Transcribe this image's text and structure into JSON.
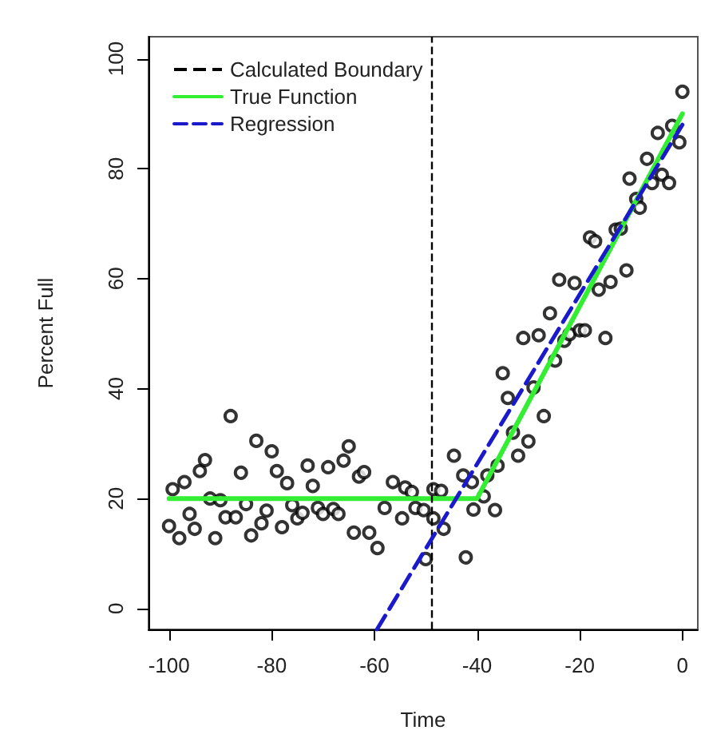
{
  "chart_data": {
    "type": "scatter",
    "xlabel": "Time",
    "ylabel": "Percent Full",
    "xlim": [
      -104,
      3
    ],
    "ylim": [
      -3.8,
      104
    ],
    "xticks": [
      -100,
      -80,
      -60,
      -40,
      -20,
      0
    ],
    "yticks": [
      0,
      20,
      40,
      60,
      80,
      100
    ],
    "grid": false,
    "legend": "top left",
    "ref_lines": [
      {
        "axis": "x",
        "value": -49,
        "label": "Calculated Boundary",
        "color": "#000000",
        "line_style": "dashed"
      }
    ],
    "series": [
      {
        "marker": "circle",
        "color": "#000000",
        "x": [
          -100,
          -99.3,
          -98,
          -97,
          -96,
          -95,
          -94,
          -93,
          -92,
          -91,
          -90,
          -89,
          -88,
          -87,
          -86,
          -85,
          -84,
          -83,
          -82,
          -81,
          -80,
          -79,
          -78,
          -77,
          -76,
          -75,
          -74,
          -73,
          -72,
          -71,
          -70,
          -69,
          -68,
          -67,
          -66,
          -65,
          -64,
          -63,
          -62,
          -61,
          -59.4,
          -58,
          -56.4,
          -54.6,
          -54,
          -52.7,
          -52,
          -50.4,
          -50,
          -48.5,
          -48.5,
          -47,
          -46.5,
          -44.5,
          -42.7,
          -42.2,
          -41,
          -40.7,
          -38.7,
          -38,
          -36.5,
          -36,
          -35,
          -34,
          -33,
          -32,
          -31,
          -30,
          -29,
          -28,
          -27,
          -25.8,
          -24.8,
          -24,
          -23,
          -22,
          -21,
          -20,
          -19,
          -18,
          -17,
          -16.3,
          -15,
          -14,
          -13,
          -12,
          -10.9,
          -10.3,
          -9,
          -8.3,
          -6.9,
          -5.9,
          -4.8,
          -4,
          -2.6,
          -2,
          -0.6,
          0
        ],
        "values": [
          15,
          21.7,
          12.8,
          23,
          17.2,
          14.5,
          25,
          27,
          20,
          12.8,
          19.7,
          16.6,
          35,
          16.6,
          24.7,
          19,
          13.3,
          30.5,
          15.5,
          17.8,
          28.6,
          25,
          14.8,
          22.8,
          18.8,
          16.4,
          17.4,
          26,
          22.3,
          18.3,
          17.2,
          25.7,
          18.1,
          17.2,
          26.9,
          29.5,
          13.8,
          24,
          24.8,
          13.8,
          11,
          18.3,
          23,
          16.4,
          22,
          21.2,
          18.3,
          17.9,
          9,
          21.7,
          16.4,
          21.4,
          14.5,
          27.8,
          24.2,
          9.3,
          23,
          18,
          20.4,
          24.2,
          17.9,
          26,
          42.8,
          38.3,
          32,
          27.8,
          49.2,
          30.4,
          40.2,
          49.7,
          35,
          53.7,
          45.1,
          59.8,
          48.7,
          49.9,
          59.2,
          50.6,
          50.6,
          67.5,
          66.8,
          58,
          49.2,
          59.4,
          68.9,
          69.1,
          61.5,
          78.2,
          74.5,
          72.9,
          81.8,
          77.4,
          86.5,
          78.9,
          77.4,
          87.8,
          84.8,
          94
        ]
      },
      {
        "type": "line",
        "name": "True Function",
        "color": "#33ee33",
        "line_style": "solid",
        "x": [
          -100,
          -40,
          0
        ],
        "values": [
          20,
          20,
          90
        ]
      },
      {
        "type": "line",
        "name": "Regression",
        "color": "#1a1acc",
        "line_style": "dashed",
        "x": [
          -59.5,
          0
        ],
        "values": [
          -3.8,
          88
        ]
      }
    ]
  }
}
